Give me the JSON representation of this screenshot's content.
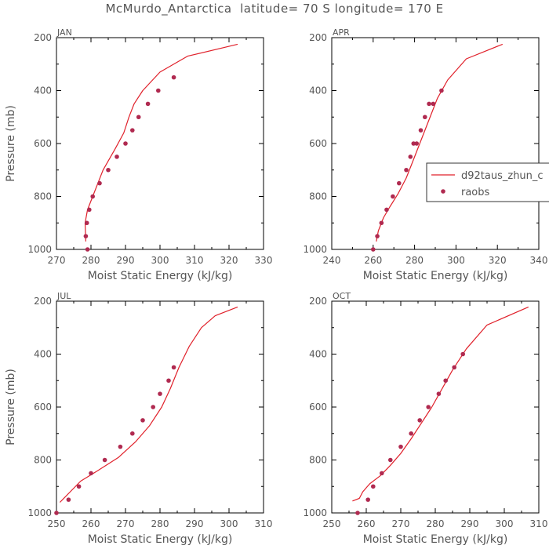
{
  "figure_title": "McMurdo_Antarctica  latitude= 70 S longitude= 170 E",
  "colors": {
    "model_line": "#e0202a",
    "obs_marker": "#b02a50",
    "axis": "#000000",
    "text": "#555555"
  },
  "chart_data": [
    {
      "type": "line",
      "title": "JAN",
      "xlabel": "Moist Static Energy (kJ/kg)",
      "ylabel": "Pressure (mb)",
      "xlim": [
        270,
        330
      ],
      "ylim": [
        1000,
        200
      ],
      "xticks": [
        270,
        280,
        290,
        300,
        310,
        320,
        330
      ],
      "yticks": [
        1000,
        800,
        600,
        400,
        200
      ],
      "series": [
        {
          "name": "d92taus_zhun_c",
          "kind": "line",
          "x": [
            278.5,
            278.3,
            279,
            280.5,
            283.5,
            287,
            289.5,
            291,
            292.5,
            295,
            300,
            308,
            322.5
          ],
          "y": [
            970,
            900,
            850,
            800,
            700,
            620,
            560,
            500,
            450,
            400,
            330,
            270,
            225
          ]
        },
        {
          "name": "raobs",
          "kind": "scatter",
          "x": [
            279,
            278.5,
            278.8,
            279.5,
            280.5,
            282.5,
            285,
            287.5,
            290,
            292,
            293.8,
            296.5,
            299.5,
            304
          ],
          "y": [
            1000,
            950,
            900,
            850,
            800,
            750,
            700,
            650,
            600,
            550,
            500,
            450,
            400,
            350
          ]
        }
      ]
    },
    {
      "type": "line",
      "title": "APR",
      "xlabel": "Moist Static Energy (kJ/kg)",
      "ylabel": "",
      "xlim": [
        240,
        340
      ],
      "ylim": [
        1000,
        200
      ],
      "xticks": [
        240,
        260,
        280,
        300,
        320,
        340
      ],
      "yticks": [
        1000,
        800,
        600,
        400,
        200
      ],
      "legend": {
        "placement": "right",
        "entries": [
          "d92taus_zhun_c",
          "raobs"
        ]
      },
      "series": [
        {
          "name": "d92taus_zhun_c",
          "kind": "line",
          "x": [
            261.5,
            262.5,
            265,
            268,
            272,
            276,
            279,
            282,
            285,
            288,
            291,
            296,
            305,
            322.5
          ],
          "y": [
            970,
            930,
            880,
            840,
            790,
            730,
            670,
            610,
            550,
            490,
            430,
            360,
            280,
            225
          ]
        },
        {
          "name": "raobs",
          "kind": "scatter",
          "x": [
            260,
            262,
            264,
            266.5,
            269.5,
            272.5,
            276,
            278,
            279.5,
            281,
            283,
            285,
            287,
            289,
            293
          ],
          "y": [
            1000,
            950,
            900,
            850,
            800,
            750,
            700,
            650,
            600,
            600,
            550,
            500,
            450,
            450,
            400
          ]
        }
      ]
    },
    {
      "type": "line",
      "title": "JUL",
      "xlabel": "Moist Static Energy (kJ/kg)",
      "ylabel": "Pressure (mb)",
      "xlim": [
        250,
        310
      ],
      "ylim": [
        1000,
        200
      ],
      "xticks": [
        250,
        260,
        270,
        280,
        290,
        300,
        310
      ],
      "yticks": [
        1000,
        800,
        600,
        400,
        200
      ],
      "series": [
        {
          "name": "d92taus_zhun_c",
          "kind": "line",
          "x": [
            251,
            254,
            257,
            262,
            268,
            273,
            277,
            280.5,
            283,
            285.5,
            288.5,
            292,
            296,
            302.5
          ],
          "y": [
            960,
            920,
            880,
            840,
            790,
            730,
            670,
            600,
            530,
            450,
            370,
            300,
            255,
            222
          ]
        },
        {
          "name": "raobs",
          "kind": "scatter",
          "x": [
            250,
            253.5,
            256.5,
            260,
            264,
            268.5,
            272,
            275,
            278,
            280,
            282.5,
            284
          ],
          "y": [
            1000,
            950,
            900,
            850,
            800,
            750,
            700,
            650,
            600,
            550,
            500,
            450
          ]
        }
      ]
    },
    {
      "type": "line",
      "title": "OCT",
      "xlabel": "Moist Static Energy (kJ/kg)",
      "ylabel": "",
      "xlim": [
        250,
        310
      ],
      "ylim": [
        1000,
        200
      ],
      "xticks": [
        250,
        260,
        270,
        280,
        290,
        300,
        310
      ],
      "yticks": [
        1000,
        800,
        600,
        400,
        200
      ],
      "series": [
        {
          "name": "d92taus_zhun_c",
          "kind": "line",
          "x": [
            256,
            258,
            259,
            261,
            264,
            267,
            270,
            273,
            276,
            279,
            282,
            285,
            289,
            295,
            307
          ],
          "y": [
            955,
            945,
            920,
            890,
            860,
            820,
            775,
            720,
            660,
            600,
            530,
            460,
            380,
            290,
            222
          ]
        },
        {
          "name": "raobs",
          "kind": "scatter",
          "x": [
            257.5,
            260.5,
            262,
            264.5,
            267,
            270,
            273,
            275.5,
            278,
            281,
            283,
            285.5,
            288
          ],
          "y": [
            1000,
            950,
            900,
            850,
            800,
            750,
            700,
            650,
            600,
            550,
            500,
            450,
            400
          ]
        }
      ]
    }
  ]
}
